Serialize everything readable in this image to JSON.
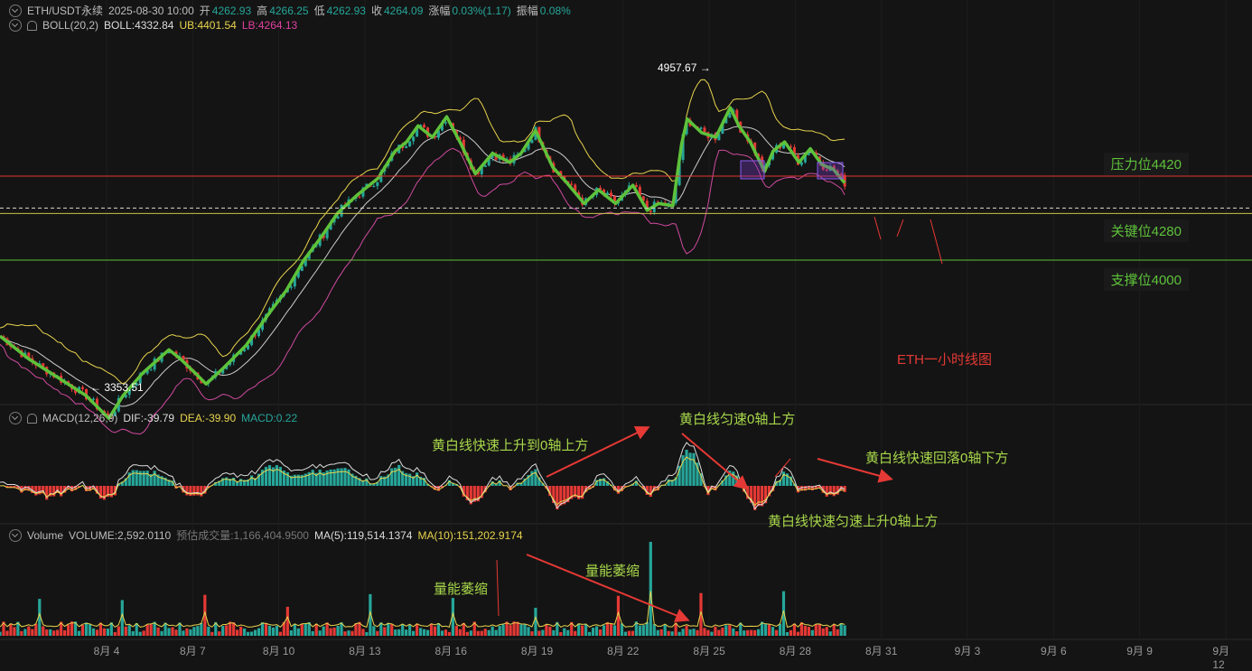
{
  "header": {
    "symbol": "ETH/USDT永续",
    "datetime": "2025-08-30 10:00",
    "open_label": "开",
    "open": "4262.93",
    "high_label": "高",
    "high": "4266.25",
    "low_label": "低",
    "low": "4262.93",
    "close_label": "收",
    "close": "4264.09",
    "change_label": "涨幅",
    "change": "0.03%(1.17)",
    "amp_label": "振幅",
    "amp": "0.08%"
  },
  "boll": {
    "name": "BOLL(20,2)",
    "mid": "BOLL:4332.84",
    "ub": "UB:4401.54",
    "lb": "LB:4264.13"
  },
  "macd": {
    "name": "MACD(12,26,9)",
    "dif": "DIF:-39.79",
    "dea": "DEA:-39.90",
    "macd": "MACD:0.22"
  },
  "volume": {
    "name": "Volume",
    "vol": "VOLUME:2,592.0110",
    "est": "预估成交量:1,166,404.9500",
    "ma5": "MA(5):119,514.1374",
    "ma10": "MA(10):151,202.9174"
  },
  "levels": {
    "resistance": "压力位4420",
    "key": "关键位4280",
    "support": "支撑位4000"
  },
  "labels": {
    "high_mark": "4957.67 →",
    "low_mark": "← 3353.51",
    "chart_title": "ETH一小时线图"
  },
  "annotations": {
    "a1": "黄白线快速上升到0轴上方",
    "a2": "黄白线匀速0轴上方",
    "a3": "黄白线快速回落0轴下方",
    "a4": "黄白线快速匀速上升0轴上方",
    "v1": "量能萎缩",
    "v2": "量能萎缩"
  },
  "colors": {
    "zigzag": "#5ec23a",
    "up": "#26a69a",
    "down": "#e53935",
    "ub": "#e8d44d",
    "lb": "#d04aa0",
    "mid": "#cccccc"
  },
  "chart_data": {
    "type": "line",
    "x_ticks": [
      "8月 4",
      "8月 7",
      "8月 10",
      "8月 13",
      "8月 16",
      "8月 19",
      "8月 22",
      "8月 25",
      "8月 28",
      "8月 31",
      "9月 3",
      "9月 6",
      "9月 9",
      "9月 12"
    ],
    "levels": [
      4420,
      4280,
      4000
    ],
    "zigzag": [
      [
        0.0,
        3720
      ],
      [
        1.0,
        3620
      ],
      [
        2.0,
        3540
      ],
      [
        3.0,
        3460
      ],
      [
        3.8,
        3360
      ],
      [
        4.3,
        3460
      ],
      [
        5.0,
        3560
      ],
      [
        5.9,
        3660
      ],
      [
        6.3,
        3620
      ],
      [
        6.8,
        3560
      ],
      [
        7.2,
        3510
      ],
      [
        7.8,
        3580
      ],
      [
        8.6,
        3680
      ],
      [
        9.4,
        3820
      ],
      [
        10.0,
        3920
      ],
      [
        10.6,
        4050
      ],
      [
        11.2,
        4150
      ],
      [
        11.8,
        4260
      ],
      [
        12.5,
        4340
      ],
      [
        13.2,
        4410
      ],
      [
        13.8,
        4530
      ],
      [
        14.2,
        4570
      ],
      [
        14.6,
        4640
      ],
      [
        15.1,
        4590
      ],
      [
        15.6,
        4680
      ],
      [
        16.1,
        4560
      ],
      [
        16.6,
        4430
      ],
      [
        17.2,
        4520
      ],
      [
        17.8,
        4480
      ],
      [
        18.2,
        4520
      ],
      [
        18.7,
        4620
      ],
      [
        19.3,
        4460
      ],
      [
        19.8,
        4390
      ],
      [
        20.4,
        4300
      ],
      [
        20.9,
        4360
      ],
      [
        21.5,
        4300
      ],
      [
        22.1,
        4380
      ],
      [
        22.6,
        4270
      ],
      [
        23.0,
        4300
      ],
      [
        23.5,
        4290
      ],
      [
        23.8,
        4560
      ],
      [
        24.0,
        4670
      ],
      [
        24.5,
        4610
      ],
      [
        25.0,
        4590
      ],
      [
        25.5,
        4720
      ],
      [
        25.8,
        4640
      ],
      [
        26.2,
        4570
      ],
      [
        26.7,
        4440
      ],
      [
        27.0,
        4530
      ],
      [
        27.4,
        4570
      ],
      [
        27.9,
        4480
      ],
      [
        28.3,
        4540
      ],
      [
        28.7,
        4470
      ],
      [
        29.1,
        4450
      ],
      [
        29.5,
        4390
      ]
    ],
    "high": {
      "x": 25.5,
      "y": 4957.67
    },
    "low": {
      "x": 3.8,
      "y": 3353.51
    }
  }
}
